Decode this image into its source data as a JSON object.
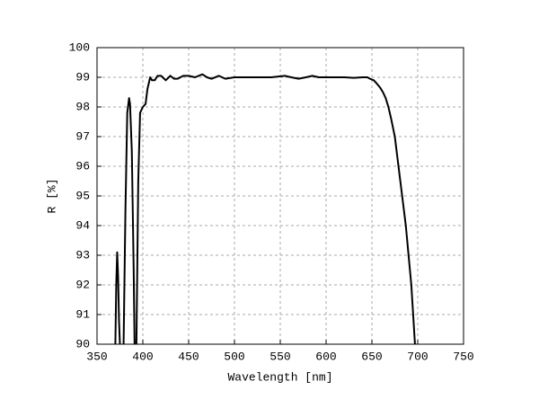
{
  "chart_data": {
    "type": "line",
    "xlabel": "Wavelength [nm]",
    "ylabel": "R [%]",
    "x": [
      370,
      371,
      372,
      373,
      374,
      375,
      377,
      379,
      381,
      383,
      385,
      386,
      388,
      390,
      391,
      392,
      393,
      395,
      397,
      400,
      403,
      405,
      408,
      410,
      413,
      416,
      420,
      425,
      430,
      434,
      438,
      444,
      450,
      457,
      465,
      470,
      475,
      483,
      490,
      500,
      510,
      520,
      530,
      540,
      555,
      562,
      570,
      578,
      585,
      592,
      600,
      610,
      620,
      630,
      640,
      645,
      648,
      652,
      655,
      659,
      662,
      665,
      668,
      671,
      675,
      679,
      683,
      687,
      690,
      693,
      695,
      697
    ],
    "values": [
      90,
      92.0,
      93.1,
      92.3,
      90.8,
      90,
      null,
      90,
      94.5,
      97.8,
      98.3,
      98.1,
      96.5,
      92.5,
      90,
      null,
      90,
      95.5,
      97.8,
      98.0,
      98.1,
      98.6,
      99.0,
      98.9,
      98.9,
      99.05,
      99.05,
      98.9,
      99.05,
      98.95,
      98.95,
      99.05,
      99.05,
      99.0,
      99.1,
      99.0,
      98.95,
      99.05,
      98.95,
      99.0,
      99.0,
      99.0,
      99.0,
      99.0,
      99.05,
      99.0,
      98.95,
      99.0,
      99.05,
      99.0,
      99.0,
      99.0,
      99.0,
      98.98,
      99.0,
      99.0,
      98.95,
      98.9,
      98.8,
      98.65,
      98.5,
      98.3,
      98.0,
      97.6,
      97.0,
      96.0,
      95.0,
      94.0,
      93.0,
      92.0,
      91.0,
      90
    ],
    "color": "#000000",
    "xlim": [
      350,
      750
    ],
    "xticks": [
      350,
      400,
      450,
      500,
      550,
      600,
      650,
      700,
      750
    ],
    "ylim": [
      90,
      100
    ],
    "yticks": [
      90,
      91,
      92,
      93,
      94,
      95,
      96,
      97,
      98,
      99,
      100
    ],
    "grid": true
  }
}
